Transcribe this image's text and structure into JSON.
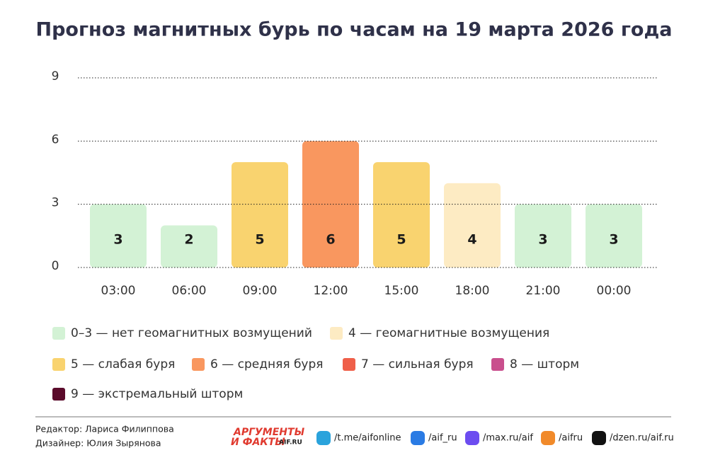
{
  "chart_data": {
    "type": "bar",
    "title": "Прогноз магнитных бурь по часам на 19 марта 2026 года",
    "categories": [
      "03:00",
      "06:00",
      "09:00",
      "12:00",
      "15:00",
      "18:00",
      "21:00",
      "00:00"
    ],
    "values": [
      3,
      2,
      5,
      6,
      5,
      4,
      3,
      3
    ],
    "colors": [
      "#d3f2d5",
      "#d3f2d5",
      "#f9d36f",
      "#f9975f",
      "#f9d36f",
      "#fdebc3",
      "#d3f2d5",
      "#d3f2d5"
    ],
    "ylim": [
      0,
      9
    ],
    "yticks": [
      0,
      3,
      6,
      9
    ],
    "grid": true,
    "legend": [
      {
        "label": "0–3 — нет геомагнитных возмущений",
        "color": "#d3f2d5"
      },
      {
        "label": "4 — геомагнитные возмущения",
        "color": "#fdebc3"
      },
      {
        "label": "5 — слабая буря",
        "color": "#f9d36f"
      },
      {
        "label": "6 — средняя буря",
        "color": "#f9975f"
      },
      {
        "label": "7 — сильная буря",
        "color": "#ef5f49"
      },
      {
        "label": "8 — шторм",
        "color": "#c94f8d"
      },
      {
        "label": "9 — экстремальный шторм",
        "color": "#5b0b2b"
      }
    ]
  },
  "footer": {
    "editor": "Редактор: Лариса Филиппова",
    "designer": "Дизайнер: Юлия Зырянова",
    "logo": [
      "АРГУМЕНТЫ",
      "И ФАКТЫ",
      "AIF.RU"
    ],
    "links": [
      "/t.me/aifonline",
      "/aif_ru",
      "/max.ru/aif",
      "/aifru",
      "/dzen.ru/aif.ru"
    ]
  }
}
